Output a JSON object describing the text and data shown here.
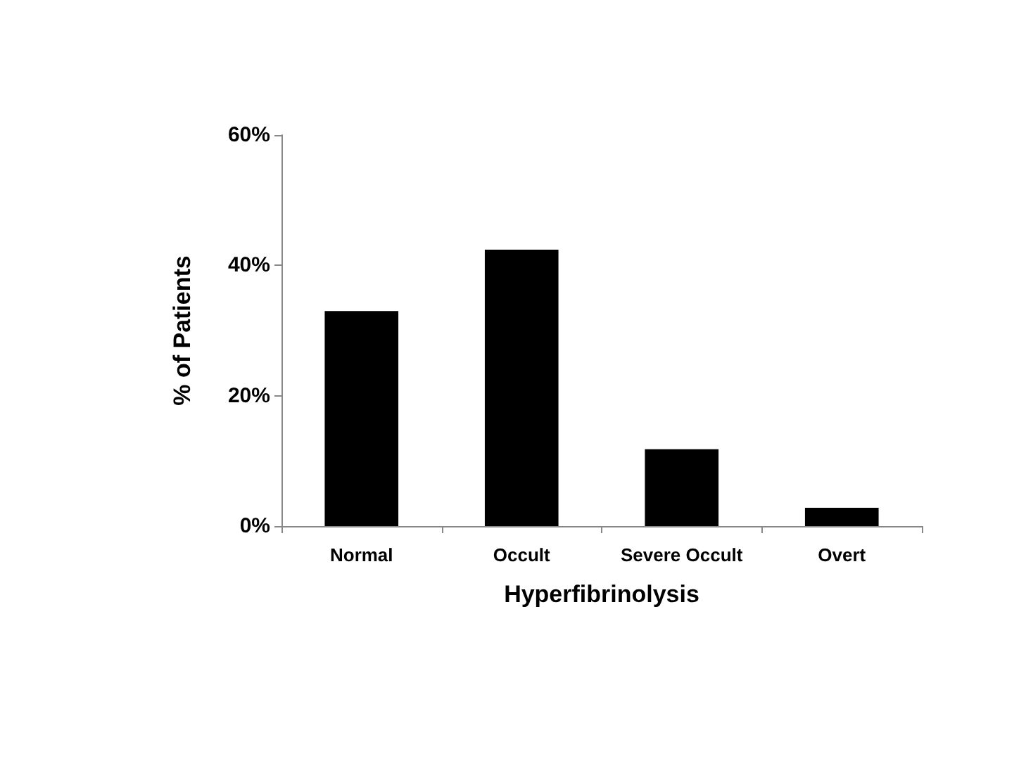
{
  "chart_data": {
    "type": "bar",
    "xlabel": "Hyperfibrinolysis",
    "ylabel": "% of Patients",
    "categories": [
      "Normal",
      "Occult",
      "Severe Occult",
      "Overt"
    ],
    "values": [
      33.0,
      42.4,
      11.8,
      2.8
    ],
    "color": "#000000",
    "ylim": [
      0,
      60
    ],
    "yticks": [
      {
        "value": 0,
        "label": "0%"
      },
      {
        "value": 20,
        "label": "20%"
      },
      {
        "value": 40,
        "label": "40%"
      },
      {
        "value": 60,
        "label": "60%"
      }
    ],
    "grid": false
  }
}
